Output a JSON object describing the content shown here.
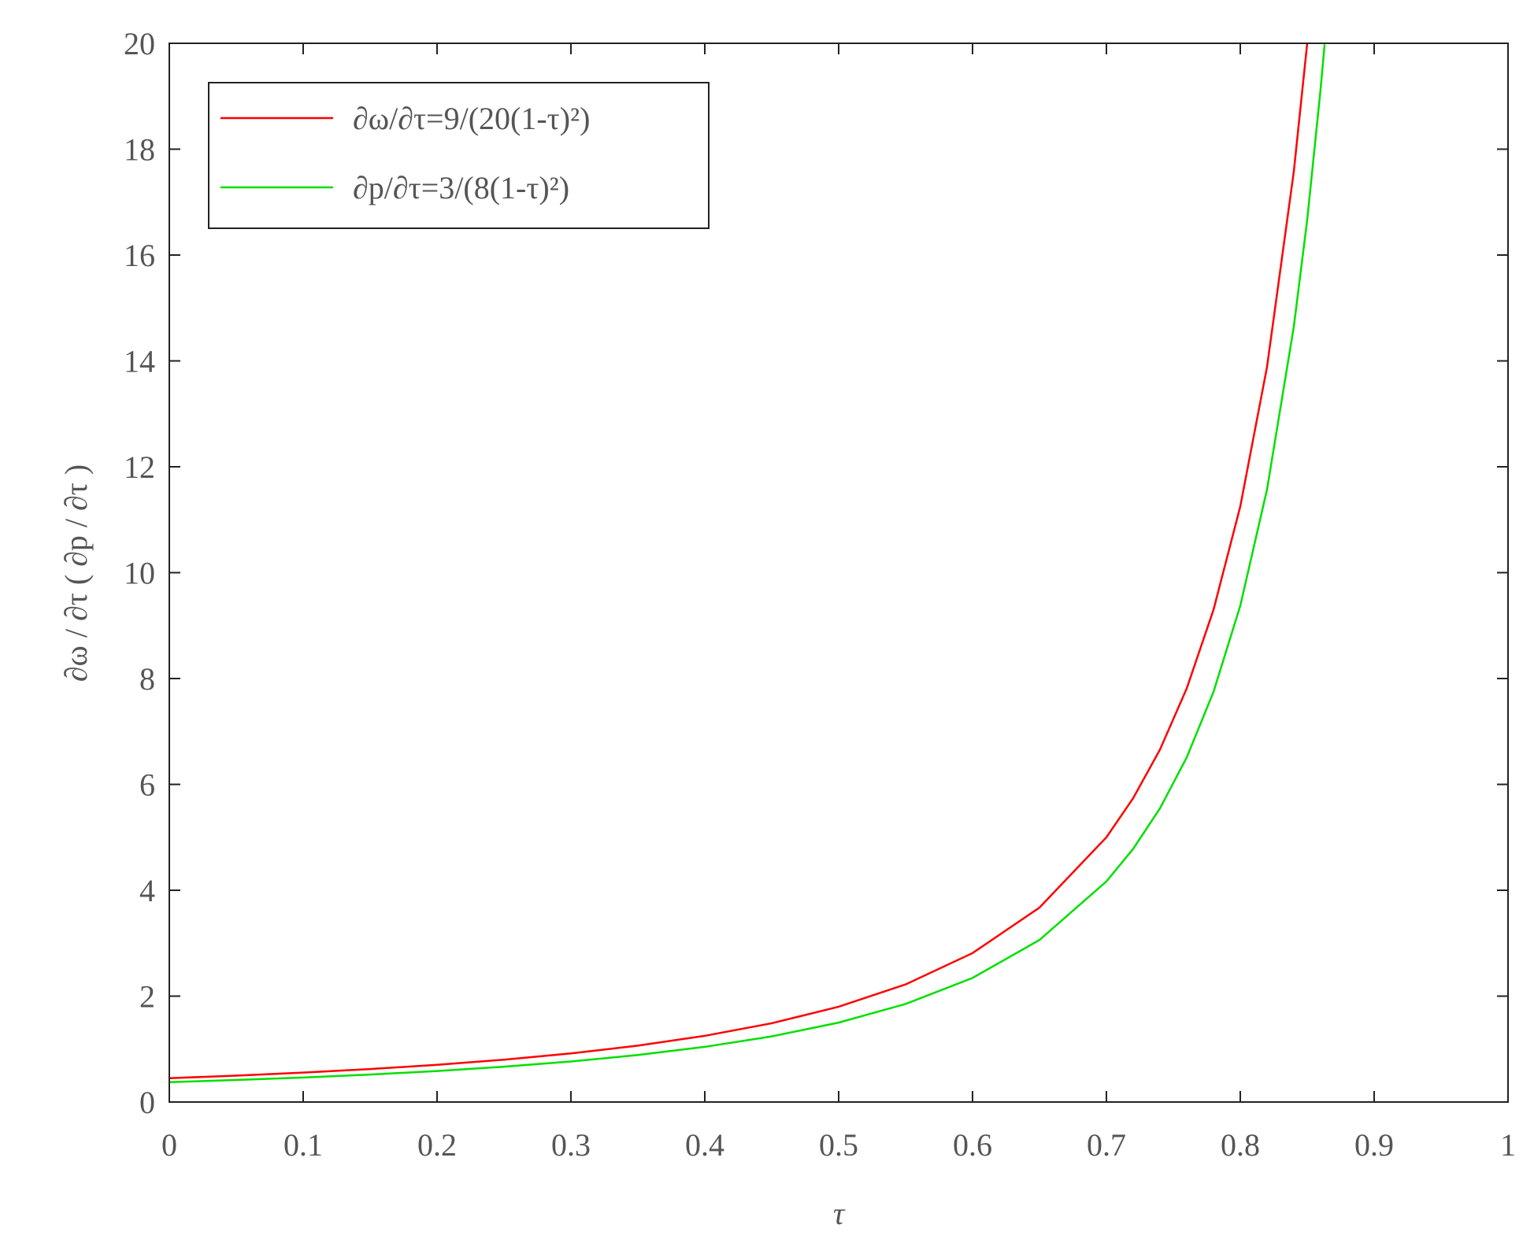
{
  "chart_data": {
    "type": "line",
    "xlabel": "τ",
    "ylabel": "∂ω / ∂τ ( ∂p / ∂τ )",
    "x": [
      0,
      0.05,
      0.1,
      0.15,
      0.2,
      0.25,
      0.3,
      0.35,
      0.4,
      0.45,
      0.5,
      0.55,
      0.6,
      0.65,
      0.7,
      0.72,
      0.74,
      0.76,
      0.78,
      0.8,
      0.82,
      0.84,
      0.85,
      0.86,
      0.863
    ],
    "series": [
      {
        "name": "∂ω/∂τ=9/(20(1-τ)²)",
        "color": "#ff0000",
        "values": [
          0.45,
          0.499,
          0.556,
          0.623,
          0.703,
          0.8,
          0.918,
          1.065,
          1.25,
          1.488,
          1.8,
          2.222,
          2.813,
          3.673,
          5.0,
          5.74,
          6.657,
          7.813,
          9.298,
          11.25,
          13.889,
          17.578,
          20,
          null,
          null
        ]
      },
      {
        "name": "∂p/∂τ=3/(8(1-τ)²)",
        "color": "#00e000",
        "values": [
          0.375,
          0.416,
          0.463,
          0.519,
          0.586,
          0.667,
          0.765,
          0.888,
          1.042,
          1.24,
          1.5,
          1.852,
          2.344,
          3.061,
          4.167,
          4.783,
          5.547,
          6.51,
          7.748,
          9.375,
          11.574,
          14.648,
          16.667,
          19.133,
          19.98
        ]
      }
    ],
    "xlim": [
      0,
      1
    ],
    "xticks": [
      0,
      0.1,
      0.2,
      0.3,
      0.4,
      0.5,
      0.6,
      0.7,
      0.8,
      0.9,
      1
    ],
    "ylim": [
      0,
      20
    ],
    "yticks": [
      0,
      2,
      4,
      6,
      8,
      10,
      12,
      14,
      16,
      18,
      20
    ],
    "legend": "upper left"
  }
}
